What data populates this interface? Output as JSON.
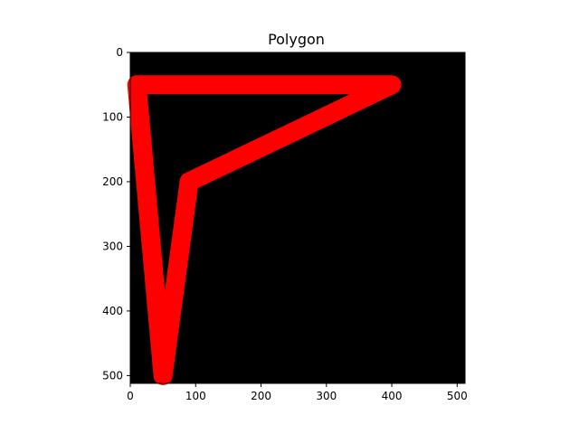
{
  "chart_data": {
    "type": "image",
    "title": "Polygon",
    "xlabel": "",
    "ylabel": "",
    "xlim": [
      0,
      512
    ],
    "ylim": [
      512,
      0
    ],
    "y_axis_inverted": true,
    "grid": false,
    "background_color": "#000000",
    "polygon": {
      "color": "#ff0000",
      "closed": true,
      "vertices": [
        {
          "x": 10,
          "y": 50
        },
        {
          "x": 400,
          "y": 50
        },
        {
          "x": 90,
          "y": 200
        },
        {
          "x": 50,
          "y": 500
        }
      ]
    },
    "x_ticks": [
      {
        "value": 0,
        "label": "0"
      },
      {
        "value": 100,
        "label": "100"
      },
      {
        "value": 200,
        "label": "200"
      },
      {
        "value": 300,
        "label": "300"
      },
      {
        "value": 400,
        "label": "400"
      },
      {
        "value": 500,
        "label": "500"
      }
    ],
    "y_ticks": [
      {
        "value": 0,
        "label": "0"
      },
      {
        "value": 100,
        "label": "100"
      },
      {
        "value": 200,
        "label": "200"
      },
      {
        "value": 300,
        "label": "300"
      },
      {
        "value": 400,
        "label": "400"
      },
      {
        "value": 500,
        "label": "500"
      }
    ]
  }
}
